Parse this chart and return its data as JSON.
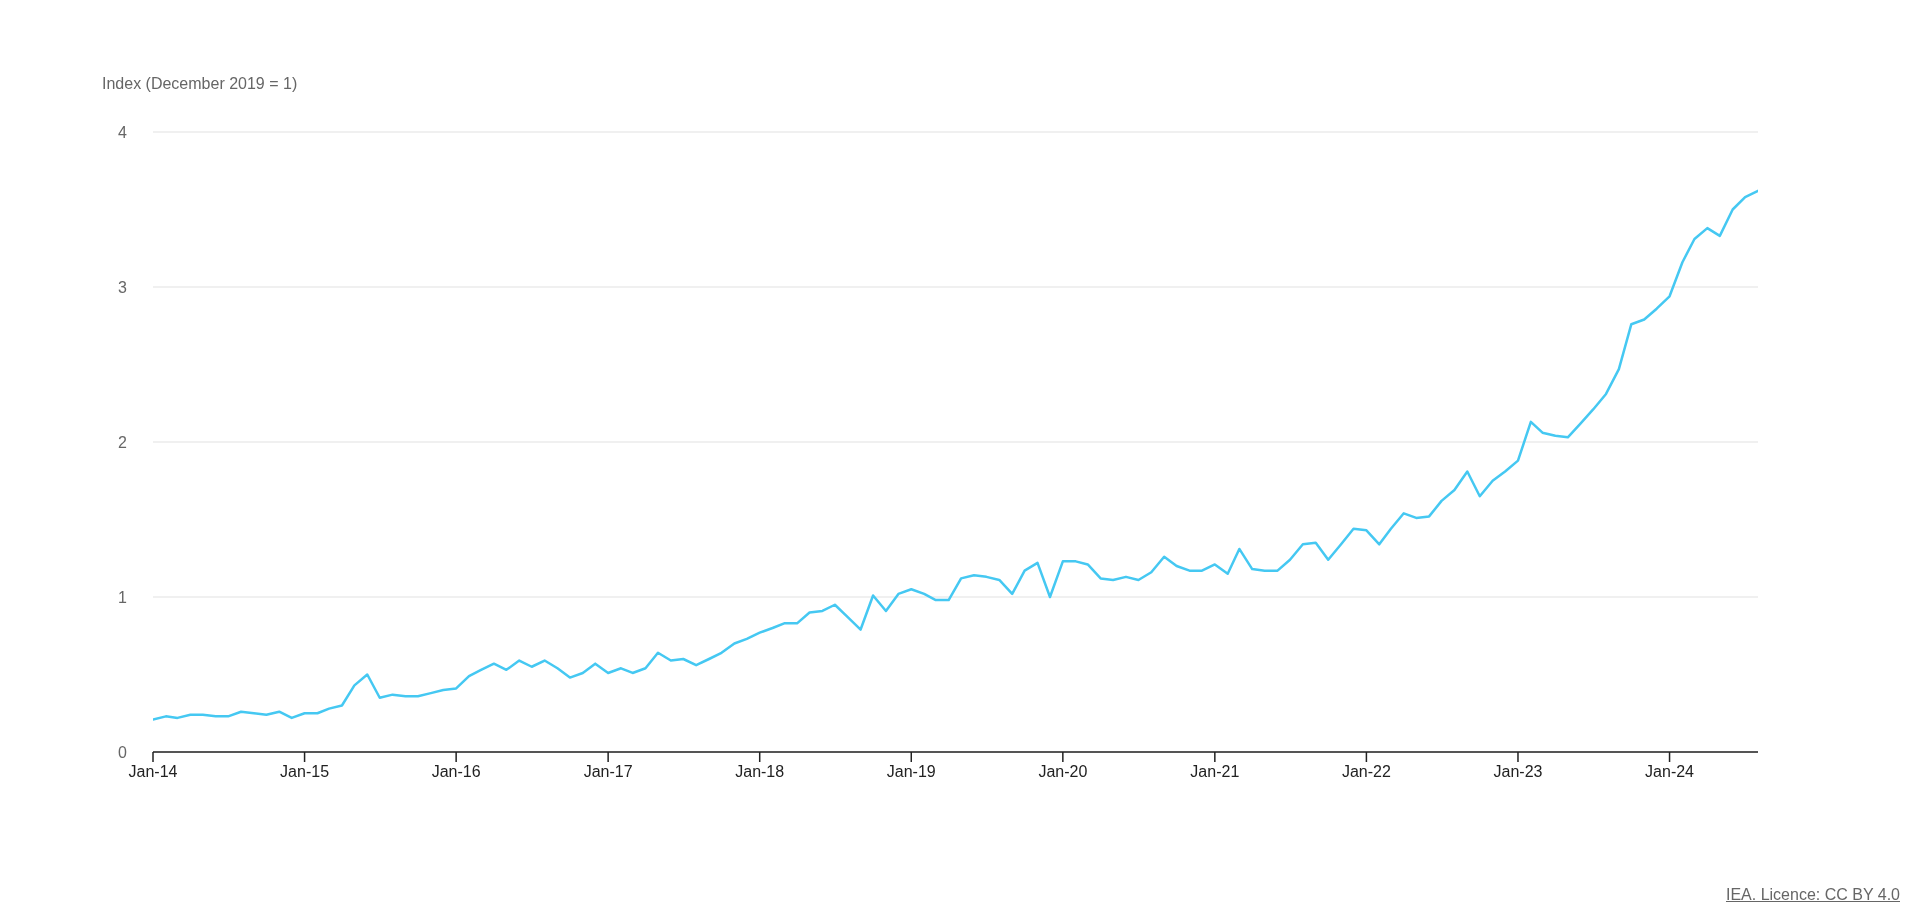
{
  "chart_data": {
    "type": "line",
    "ylabel": "Index (December 2019 = 1)",
    "annotations": [
      "IEA. Licence: CC BY 4.0"
    ],
    "x": [
      "2014-01",
      "2014-02",
      "2014-03",
      "2014-04",
      "2014-05",
      "2014-06",
      "2014-07",
      "2014-08",
      "2014-09",
      "2014-10",
      "2014-11",
      "2014-12",
      "2015-01",
      "2015-02",
      "2015-03",
      "2015-04",
      "2015-05",
      "2015-06",
      "2015-07",
      "2015-08",
      "2015-09",
      "2015-10",
      "2015-11",
      "2015-12",
      "2016-01",
      "2016-02",
      "2016-03",
      "2016-04",
      "2016-05",
      "2016-06",
      "2016-07",
      "2016-08",
      "2016-09",
      "2016-10",
      "2016-11",
      "2016-12",
      "2017-01",
      "2017-02",
      "2017-03",
      "2017-04",
      "2017-05",
      "2017-06",
      "2017-07",
      "2017-08",
      "2017-09",
      "2017-10",
      "2017-11",
      "2017-12",
      "2018-01",
      "2018-02",
      "2018-03",
      "2018-04",
      "2018-05",
      "2018-06",
      "2018-07",
      "2018-08",
      "2018-09",
      "2018-10",
      "2018-11",
      "2018-12",
      "2019-01",
      "2019-02",
      "2019-03",
      "2019-04",
      "2019-05",
      "2019-06",
      "2019-07",
      "2019-08",
      "2019-09",
      "2019-10",
      "2019-11",
      "2019-12",
      "2020-01",
      "2020-02",
      "2020-03",
      "2020-04",
      "2020-05",
      "2020-06",
      "2020-07",
      "2020-08",
      "2020-09",
      "2020-10",
      "2020-11",
      "2020-12",
      "2021-01",
      "2021-02",
      "2021-03",
      "2021-04",
      "2021-05",
      "2021-06",
      "2021-07",
      "2021-08",
      "2021-09",
      "2021-10",
      "2021-11",
      "2021-12",
      "2022-01",
      "2022-02",
      "2022-03",
      "2022-04",
      "2022-05",
      "2022-06",
      "2022-07",
      "2022-08",
      "2022-09",
      "2022-10",
      "2022-11",
      "2022-12",
      "2023-01",
      "2023-02",
      "2023-03",
      "2023-04",
      "2023-05",
      "2023-06",
      "2023-07",
      "2023-08",
      "2023-09",
      "2023-10",
      "2023-11",
      "2023-12",
      "2024-01",
      "2024-02",
      "2024-03",
      "2024-04",
      "2024-05",
      "2024-06",
      "2024-07",
      "2024-08"
    ],
    "values": [
      0.21,
      0.23,
      0.22,
      0.24,
      0.24,
      0.23,
      0.23,
      0.26,
      0.25,
      0.24,
      0.26,
      0.22,
      0.25,
      0.25,
      0.28,
      0.3,
      0.43,
      0.5,
      0.35,
      0.37,
      0.36,
      0.36,
      0.38,
      0.4,
      0.41,
      0.49,
      0.53,
      0.57,
      0.53,
      0.59,
      0.55,
      0.59,
      0.54,
      0.48,
      0.51,
      0.57,
      0.51,
      0.54,
      0.51,
      0.54,
      0.64,
      0.59,
      0.6,
      0.56,
      0.6,
      0.64,
      0.7,
      0.73,
      0.77,
      0.8,
      0.83,
      0.83,
      0.9,
      0.91,
      0.95,
      0.87,
      0.79,
      1.01,
      0.91,
      1.02,
      1.05,
      1.02,
      0.98,
      0.98,
      1.12,
      1.14,
      1.13,
      1.11,
      1.02,
      1.17,
      1.22,
      1.0,
      1.23,
      1.23,
      1.21,
      1.12,
      1.11,
      1.13,
      1.11,
      1.16,
      1.26,
      1.2,
      1.17,
      1.17,
      1.21,
      1.15,
      1.31,
      1.18,
      1.17,
      1.17,
      1.24,
      1.34,
      1.35,
      1.24,
      1.34,
      1.44,
      1.43,
      1.34,
      1.44,
      1.54,
      1.51,
      1.52,
      1.62,
      1.69,
      1.81,
      1.65,
      1.75,
      1.81,
      1.88,
      2.13,
      2.06,
      2.04,
      2.03,
      2.12,
      2.21,
      2.31,
      2.47,
      2.76,
      2.79,
      2.86,
      2.94,
      3.16,
      3.31,
      3.38,
      3.33,
      3.5,
      3.58,
      3.62
    ],
    "color": "#45c8f2",
    "xlim": [
      "2014-01",
      "2024-08"
    ],
    "xticks": [
      {
        "value": "2014-01",
        "label": "Jan-14"
      },
      {
        "value": "2015-01",
        "label": "Jan-15"
      },
      {
        "value": "2016-01",
        "label": "Jan-16"
      },
      {
        "value": "2017-01",
        "label": "Jan-17"
      },
      {
        "value": "2018-01",
        "label": "Jan-18"
      },
      {
        "value": "2019-01",
        "label": "Jan-19"
      },
      {
        "value": "2020-01",
        "label": "Jan-20"
      },
      {
        "value": "2021-01",
        "label": "Jan-21"
      },
      {
        "value": "2022-01",
        "label": "Jan-22"
      },
      {
        "value": "2023-01",
        "label": "Jan-23"
      },
      {
        "value": "2024-01",
        "label": "Jan-24"
      }
    ],
    "ylim": [
      0,
      4
    ],
    "yticks": [
      0,
      1,
      2,
      3,
      4
    ],
    "grid": "y",
    "marker": "none",
    "line_style": "solid"
  }
}
